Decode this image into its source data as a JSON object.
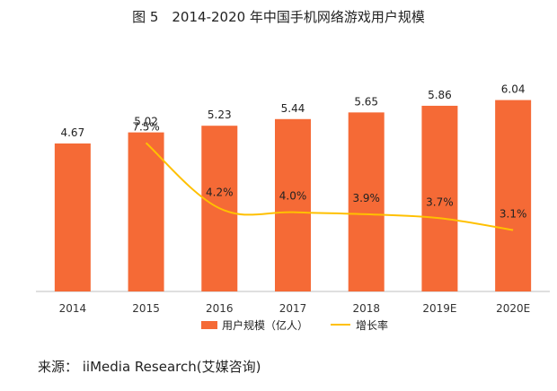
{
  "title": "图 5　2014-2020 年中国手机网络游戏用户规模",
  "source": "来源：  iiMedia Research(艾媒咨询)",
  "chart_data": {
    "type": "bar",
    "title": "图 5　2014-2020 年中国手机网络游戏用户规模",
    "categories": [
      "2014",
      "2015",
      "2016",
      "2017",
      "2018",
      "2019E",
      "2020E"
    ],
    "series": [
      {
        "name": "用户规模（亿人）",
        "type": "bar",
        "color": "#F56A36",
        "values": [
          4.67,
          5.02,
          5.23,
          5.44,
          5.65,
          5.86,
          6.04
        ],
        "labels": [
          "4.67",
          "5.02",
          "5.23",
          "5.44",
          "5.65",
          "5.86",
          "6.04"
        ]
      },
      {
        "name": "增长率",
        "type": "line",
        "color": "#FFC000",
        "values": [
          null,
          7.5,
          4.2,
          4.0,
          3.9,
          3.7,
          3.1
        ],
        "labels": [
          "",
          "7.5%",
          "4.2%",
          "4.0%",
          "3.9%",
          "3.7%",
          "3.1%"
        ]
      }
    ],
    "ylim": [
      0,
      7.5
    ],
    "ylim_growth": [
      0,
      12
    ],
    "legend": "bottom-center",
    "grid": false
  }
}
